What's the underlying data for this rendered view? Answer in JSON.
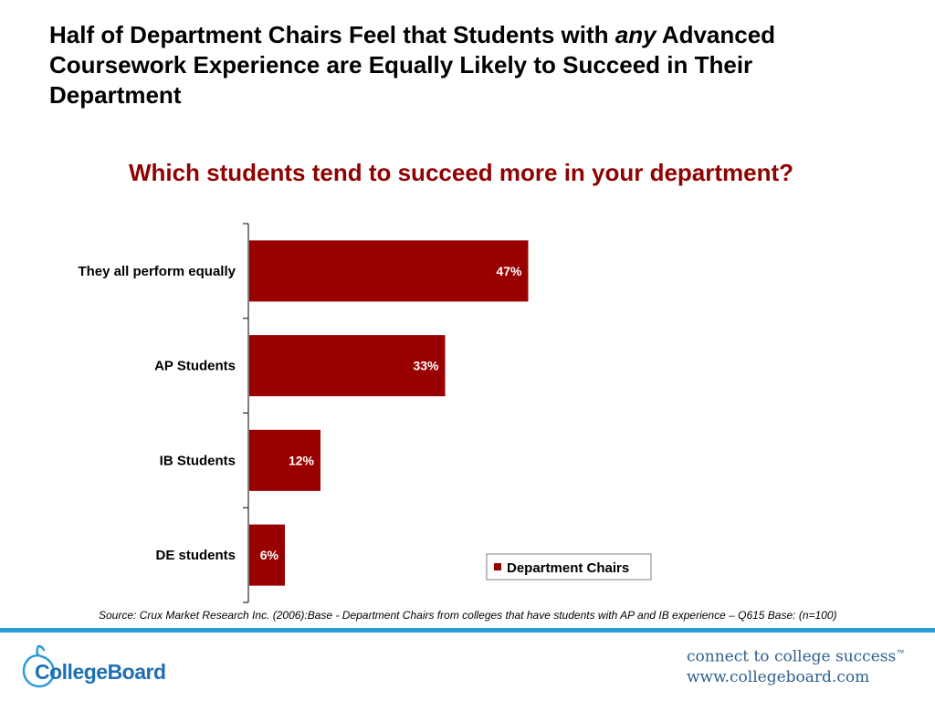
{
  "slide": {
    "title_part1": "Half of Department Chairs Feel that Students with ",
    "title_emphasis": "any",
    "title_part2": " Advanced Coursework Experience are Equally Likely to Succeed in Their Department",
    "question": "Which students tend to succeed more in your department?",
    "source": "Source: Crux Market Research Inc. (2006):Base - Department Chairs from colleges that have students with AP and IB experience – Q615 Base: (n=100)"
  },
  "chart_data": {
    "type": "bar",
    "orientation": "horizontal",
    "title": "Which students tend to succeed more in your department?",
    "categories": [
      "They all perform equally",
      "AP Students",
      "IB Students",
      "DE students"
    ],
    "series": [
      {
        "name": "Department Chairs",
        "values": [
          47,
          33,
          12,
          6
        ],
        "labels": [
          "47%",
          "33%",
          "12%",
          "6%"
        ]
      }
    ],
    "xlim": [
      0,
      100
    ],
    "grid": false,
    "legend_position": "bottom-right",
    "bar_color": "#990000",
    "label_color": "#ffffff"
  },
  "footer": {
    "logo_text": "CollegeBoard",
    "tagline": "connect to college success",
    "trademark": "™",
    "url": "www.collegeboard.com"
  },
  "colors": {
    "question": "#8f0000",
    "rule": "#2b9bd8",
    "logo": "#1f6fb3",
    "tagline": "#2d5f8f"
  }
}
